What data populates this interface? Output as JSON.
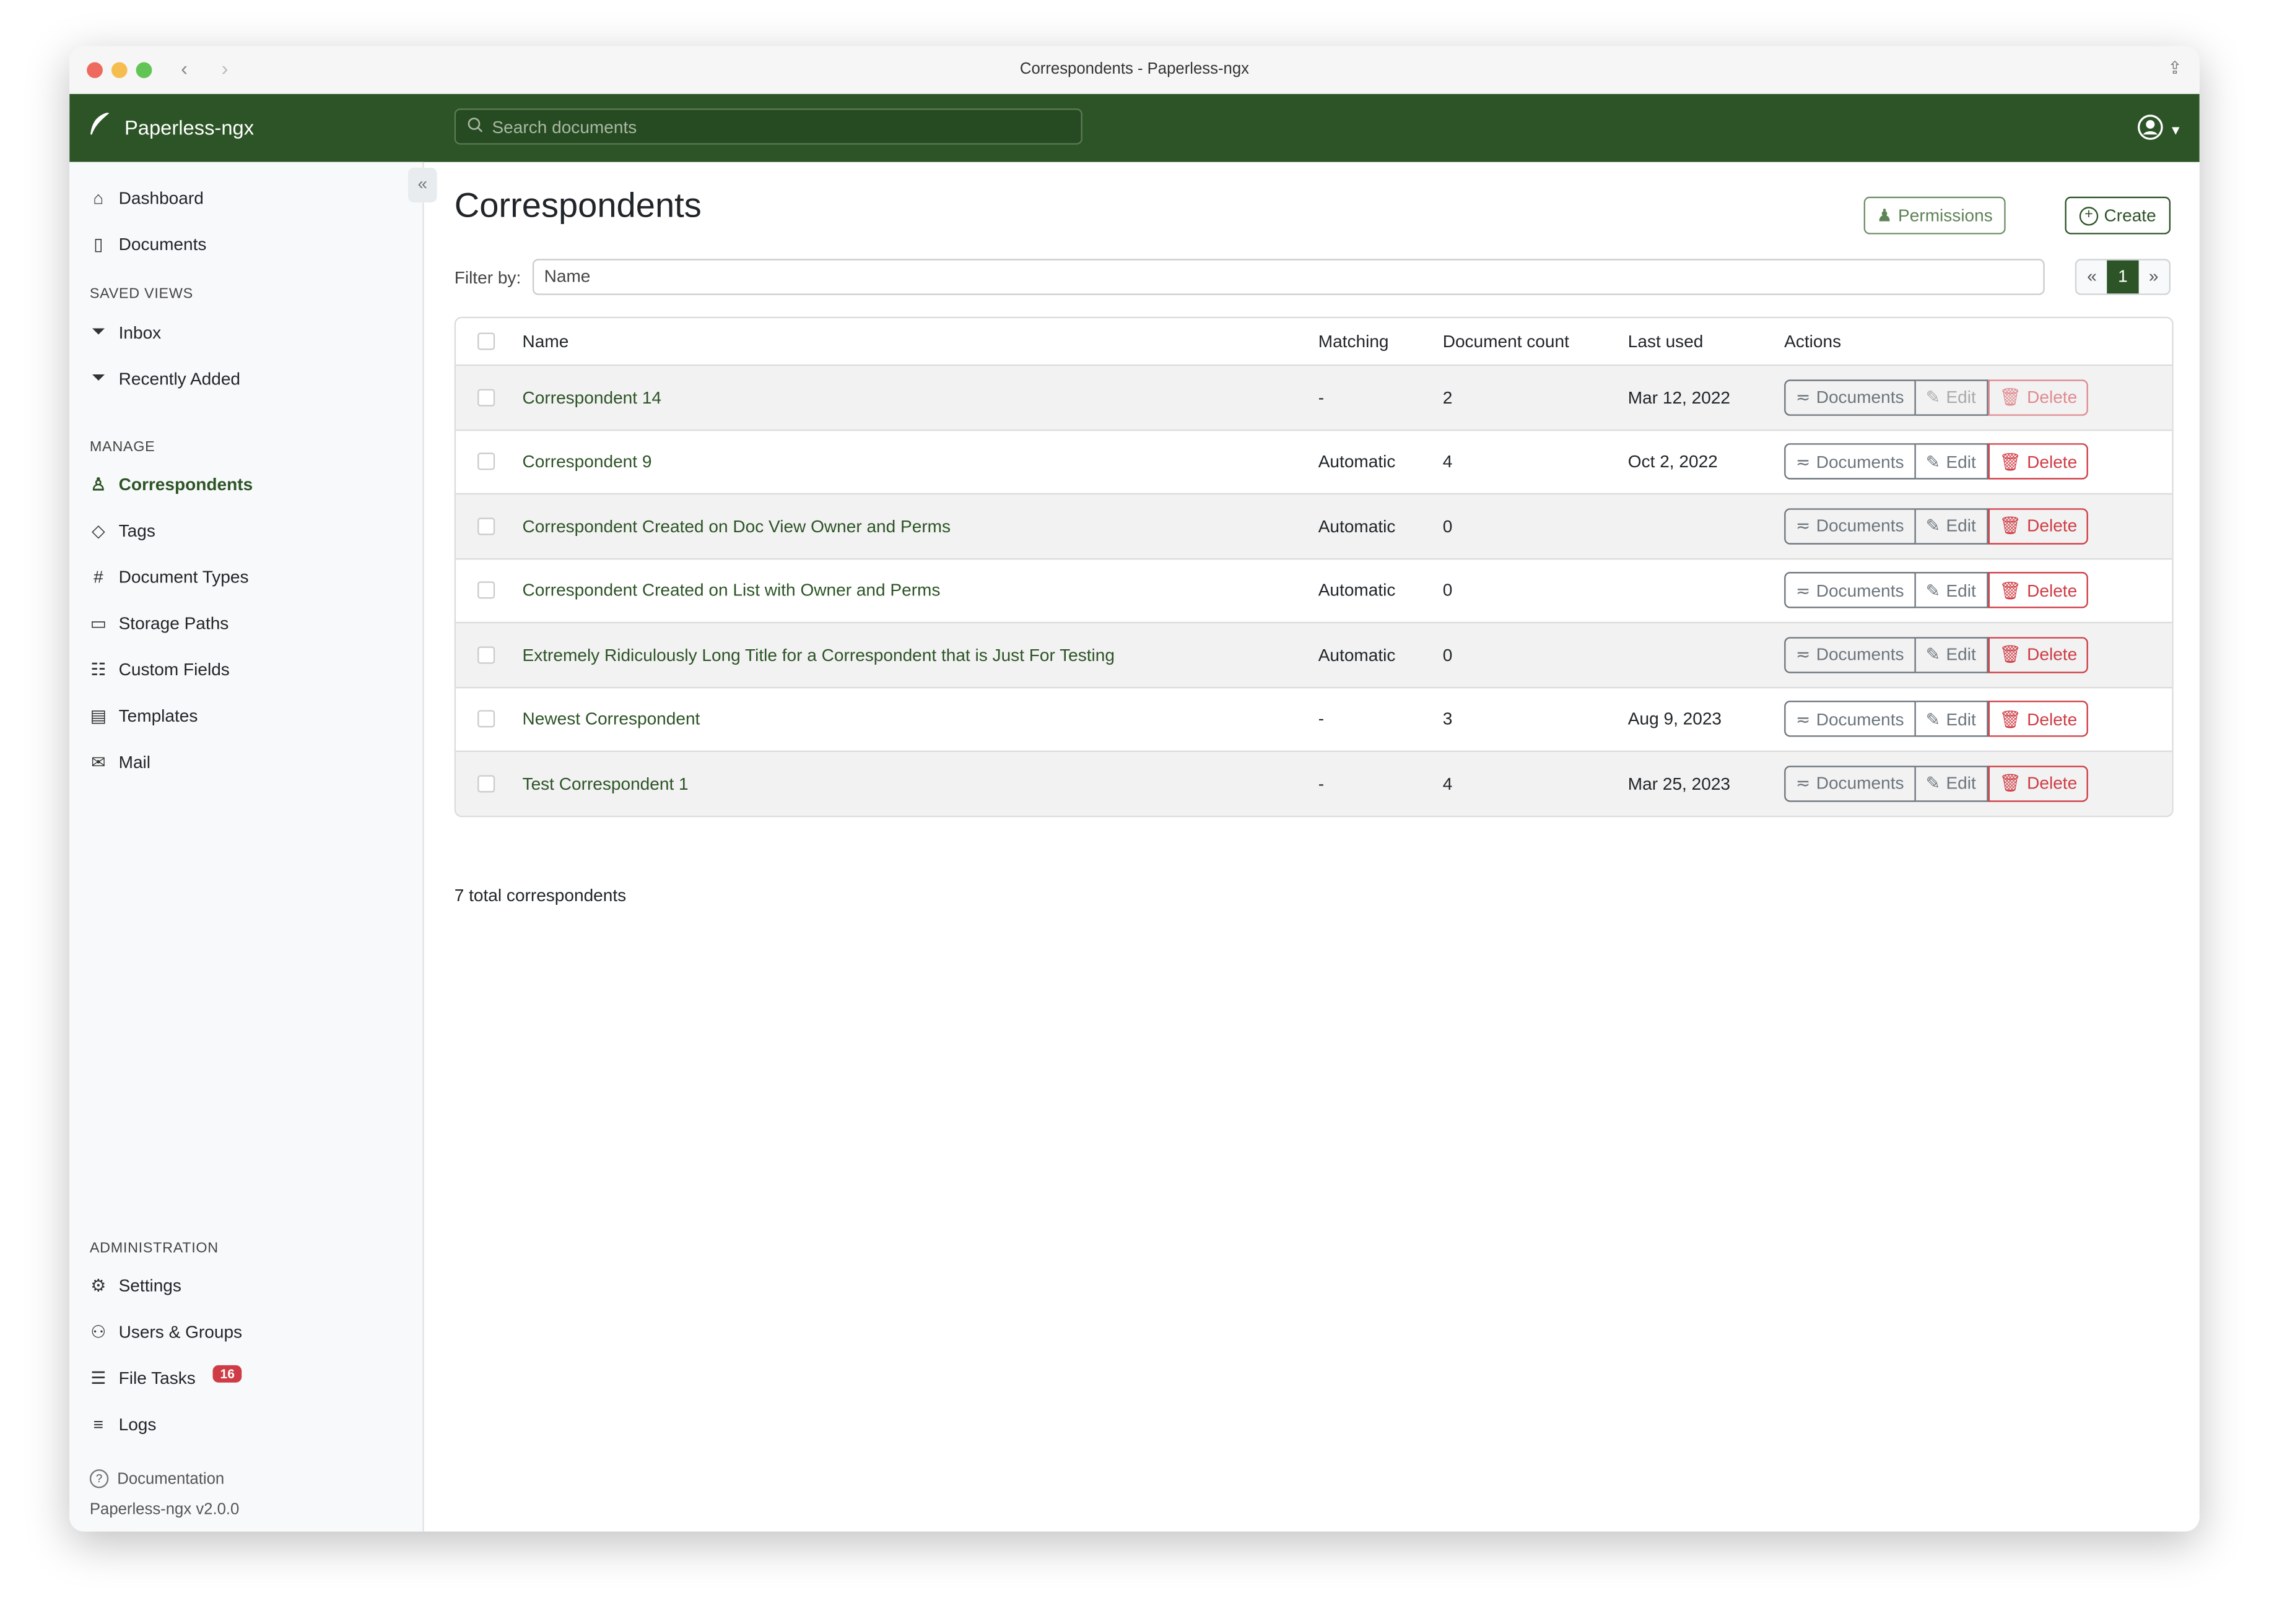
{
  "window": {
    "title": "Correspondents - Paperless-ngx"
  },
  "header": {
    "brand": "Paperless-ngx",
    "search_placeholder": "Search documents"
  },
  "sidebar": {
    "top": [
      {
        "label": "Dashboard",
        "icon": "house-icon"
      },
      {
        "label": "Documents",
        "icon": "documents-icon"
      }
    ],
    "saved_views_heading": "SAVED VIEWS",
    "saved_views": [
      {
        "label": "Inbox",
        "icon": "funnel-icon"
      },
      {
        "label": "Recently Added",
        "icon": "funnel-icon"
      }
    ],
    "manage_heading": "MANAGE",
    "manage": [
      {
        "label": "Correspondents",
        "icon": "person-icon",
        "active": true
      },
      {
        "label": "Tags",
        "icon": "tags-icon"
      },
      {
        "label": "Document Types",
        "icon": "hash-icon"
      },
      {
        "label": "Storage Paths",
        "icon": "folder-icon"
      },
      {
        "label": "Custom Fields",
        "icon": "ui-radios-icon"
      },
      {
        "label": "Templates",
        "icon": "file-text-icon"
      },
      {
        "label": "Mail",
        "icon": "envelope-icon"
      }
    ],
    "admin_heading": "ADMINISTRATION",
    "admin": [
      {
        "label": "Settings",
        "icon": "gear-icon"
      },
      {
        "label": "Users & Groups",
        "icon": "people-icon"
      },
      {
        "label": "File Tasks",
        "icon": "list-task-icon",
        "badge": "16"
      },
      {
        "label": "Logs",
        "icon": "text-left-icon"
      }
    ],
    "documentation": "Documentation",
    "version": "Paperless-ngx v2.0.0"
  },
  "main": {
    "title": "Correspondents",
    "permissions_label": "Permissions",
    "create_label": "Create",
    "filter_label": "Filter by:",
    "filter_value": "Name",
    "pager": {
      "prev": "«",
      "current": "1",
      "next": "»"
    },
    "columns": [
      "Name",
      "Matching",
      "Document count",
      "Last used",
      "Actions"
    ],
    "actions": {
      "documents": "Documents",
      "edit": "Edit",
      "delete": "Delete"
    },
    "rows": [
      {
        "name": "Correspondent 14",
        "matching": "-",
        "count": "2",
        "last_used": "Mar 12, 2022",
        "disabled": true
      },
      {
        "name": "Correspondent 9",
        "matching": "Automatic",
        "count": "4",
        "last_used": "Oct 2, 2022"
      },
      {
        "name": "Correspondent Created on Doc View Owner and Perms",
        "matching": "Automatic",
        "count": "0",
        "last_used": ""
      },
      {
        "name": "Correspondent Created on List with Owner and Perms",
        "matching": "Automatic",
        "count": "0",
        "last_used": ""
      },
      {
        "name": "Extremely Ridiculously Long Title for a Correspondent that is Just For Testing",
        "matching": "Automatic",
        "count": "0",
        "last_used": ""
      },
      {
        "name": "Newest Correspondent",
        "matching": "-",
        "count": "3",
        "last_used": "Aug 9, 2023"
      },
      {
        "name": "Test Correspondent 1",
        "matching": "-",
        "count": "4",
        "last_used": "Mar 25, 2023"
      }
    ],
    "total": "7 total correspondents"
  },
  "colors": {
    "brand": "#2c5426",
    "danger": "#cf3c45"
  }
}
